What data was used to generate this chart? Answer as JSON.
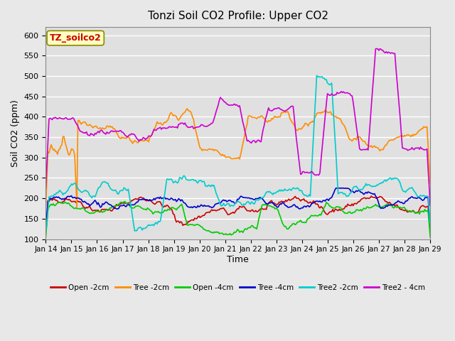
{
  "title": "Tonzi Soil CO2 Profile: Upper CO2",
  "ylabel": "Soil CO2 (ppm)",
  "xlabel": "Time",
  "annotation": "TZ_soilco2",
  "ylim": [
    100,
    620
  ],
  "yticks": [
    100,
    150,
    200,
    250,
    300,
    350,
    400,
    450,
    500,
    550,
    600
  ],
  "x_labels": [
    "Jan 14",
    "Jan 15",
    "Jan 16",
    "Jan 17",
    "Jan 18",
    "Jan 19",
    "Jan 20",
    "Jan 21",
    "Jan 22",
    "Jan 23",
    "Jan 24",
    "Jan 25",
    "Jan 26",
    "Jan 27",
    "Jan 28",
    "Jan 29"
  ],
  "series": {
    "Open -2cm": {
      "color": "#cc0000",
      "lw": 1.2
    },
    "Tree -2cm": {
      "color": "#ff8c00",
      "lw": 1.2
    },
    "Open -4cm": {
      "color": "#00cc00",
      "lw": 1.2
    },
    "Tree -4cm": {
      "color": "#0000cc",
      "lw": 1.2
    },
    "Tree2 -2cm": {
      "color": "#00cccc",
      "lw": 1.2
    },
    "Tree2 - 4cm": {
      "color": "#cc00cc",
      "lw": 1.2
    }
  },
  "background_color": "#e8e8e8",
  "plot_bg": "#e0e0e0",
  "grid_color": "#ffffff",
  "n_points": 360
}
